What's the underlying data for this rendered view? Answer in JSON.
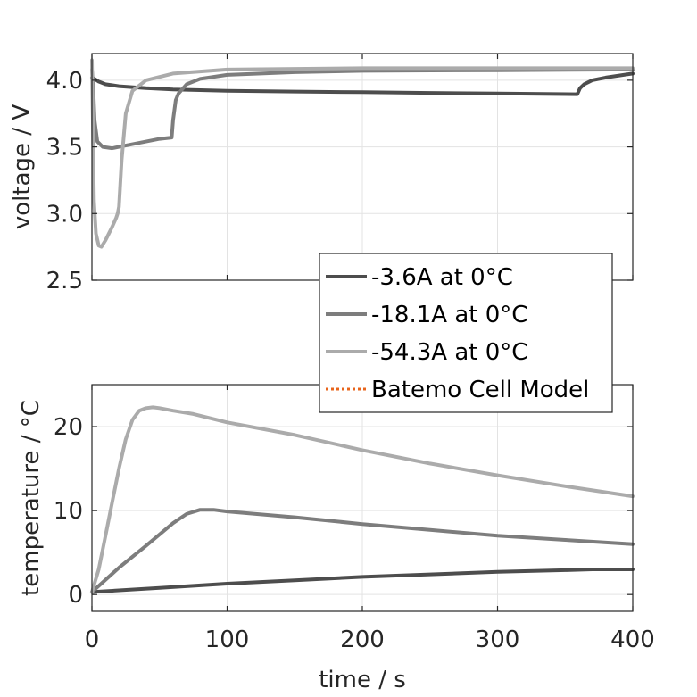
{
  "chart_data": [
    {
      "type": "line",
      "xlabel": "",
      "ylabel": "voltage / V",
      "xlim": [
        0,
        400
      ],
      "ylim": [
        2.5,
        4.2
      ],
      "xticks": [
        0,
        100,
        200,
        300,
        400
      ],
      "yticks": [
        2.5,
        3.0,
        3.5,
        4.0
      ],
      "ytick_labels": [
        "2.5",
        "3.0",
        "3.5",
        "4.0"
      ],
      "grid": true,
      "series": [
        {
          "name": "-3.6A at 0°C",
          "color": "#4d4d4d",
          "x": [
            0,
            2,
            5,
            10,
            20,
            40,
            60,
            100,
            150,
            200,
            250,
            300,
            359,
            361,
            364,
            370,
            380,
            400
          ],
          "y": [
            4.02,
            4.01,
            3.99,
            3.97,
            3.955,
            3.94,
            3.93,
            3.92,
            3.915,
            3.91,
            3.905,
            3.9,
            3.895,
            3.94,
            3.97,
            4.0,
            4.02,
            4.05
          ]
        },
        {
          "name": "-18.1A at 0°C",
          "color": "#7d7d7d",
          "x": [
            0,
            1,
            2,
            4,
            8,
            15,
            30,
            50,
            59,
            60,
            62,
            64,
            70,
            80,
            100,
            150,
            200,
            300,
            400
          ],
          "y": [
            4.08,
            3.95,
            3.7,
            3.54,
            3.5,
            3.49,
            3.52,
            3.56,
            3.57,
            3.7,
            3.85,
            3.9,
            3.97,
            4.01,
            4.04,
            4.06,
            4.07,
            4.075,
            4.08
          ]
        },
        {
          "name": "-54.3A at 0°C",
          "color": "#ababab",
          "x": [
            0,
            0.8,
            1.5,
            3,
            5,
            7,
            10,
            15,
            18,
            19,
            20,
            22,
            25,
            30,
            40,
            60,
            100,
            200,
            300,
            400
          ],
          "y": [
            4.15,
            3.6,
            3.1,
            2.85,
            2.76,
            2.75,
            2.8,
            2.9,
            2.97,
            3.0,
            3.05,
            3.4,
            3.75,
            3.92,
            4.0,
            4.05,
            4.08,
            4.09,
            4.09,
            4.09
          ]
        }
      ]
    },
    {
      "type": "line",
      "xlabel": "time / s",
      "ylabel": "temperature / °C",
      "xlim": [
        0,
        400
      ],
      "ylim": [
        -2,
        25
      ],
      "xticks": [
        0,
        100,
        200,
        300,
        400
      ],
      "xtick_labels": [
        "0",
        "100",
        "200",
        "300",
        "400"
      ],
      "yticks": [
        0,
        10,
        20
      ],
      "ytick_labels": [
        "0",
        "10",
        "20"
      ],
      "grid": true,
      "series": [
        {
          "name": "-3.6A at 0°C",
          "color": "#4d4d4d",
          "x": [
            0,
            50,
            100,
            150,
            200,
            250,
            300,
            350,
            370,
            400
          ],
          "y": [
            0.3,
            0.8,
            1.3,
            1.7,
            2.1,
            2.4,
            2.7,
            2.9,
            3.0,
            3.0
          ]
        },
        {
          "name": "-18.1A at 0°C",
          "color": "#7d7d7d",
          "x": [
            0,
            20,
            40,
            60,
            70,
            80,
            90,
            100,
            150,
            200,
            250,
            300,
            350,
            400
          ],
          "y": [
            0.3,
            3.2,
            5.8,
            8.5,
            9.6,
            10.1,
            10.1,
            9.9,
            9.2,
            8.4,
            7.7,
            7.0,
            6.5,
            6.0
          ]
        },
        {
          "name": "-54.3A at 0°C",
          "color": "#ababab",
          "x": [
            0,
            5,
            10,
            15,
            20,
            25,
            30,
            35,
            40,
            45,
            50,
            60,
            75,
            100,
            150,
            200,
            250,
            300,
            350,
            400
          ],
          "y": [
            0.3,
            3.0,
            7.0,
            11.0,
            15.0,
            18.5,
            20.8,
            21.9,
            22.2,
            22.3,
            22.2,
            21.9,
            21.5,
            20.5,
            19.0,
            17.2,
            15.6,
            14.2,
            12.9,
            11.7
          ]
        }
      ]
    }
  ],
  "legend": {
    "placement": "center-right",
    "entries": [
      {
        "label": "-3.6A at 0°C",
        "color": "#4d4d4d",
        "style": "solid"
      },
      {
        "label": "-18.1A at 0°C",
        "color": "#7d7d7d",
        "style": "solid"
      },
      {
        "label": "-54.3A at 0°C",
        "color": "#ababab",
        "style": "solid"
      },
      {
        "label": "Batemo Cell Model",
        "color": "#e8641b",
        "style": "dotted"
      }
    ]
  }
}
